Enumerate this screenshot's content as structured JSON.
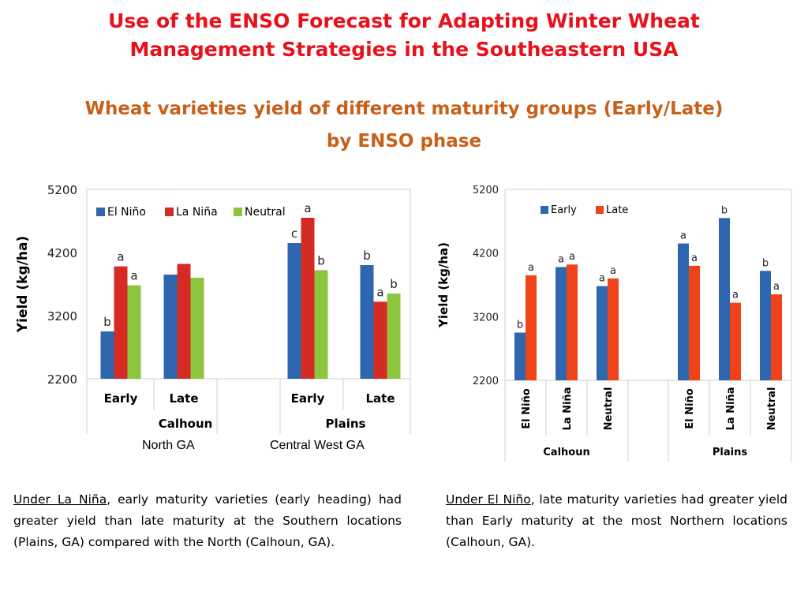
{
  "title": {
    "line1": "Use of the ENSO Forecast for Adapting Winter Wheat",
    "line2": "Management Strategies in the Southeastern USA"
  },
  "subtitle": {
    "line1": "Wheat varieties yield of different maturity groups (Early/Late)",
    "line2": "by ENSO phase"
  },
  "colors": {
    "el_nino": "#2e67b0",
    "la_nina": "#d62b25",
    "neutral": "#8cc63f",
    "early": "#2e67b0",
    "late": "#f0431a",
    "title": "#e8111b",
    "subtitle": "#c8601a"
  },
  "chart_data": [
    {
      "type": "bar",
      "ylabel": "Yield (kg/ha)",
      "ylim": [
        2200,
        5200
      ],
      "yticks": [
        2200,
        3200,
        4200,
        5200
      ],
      "grid": false,
      "legend": "top-left",
      "categories": [
        "Early",
        "Late",
        "Early",
        "Late"
      ],
      "groups": [
        {
          "name": "Calhoun",
          "categories": [
            "Early",
            "Late"
          ]
        },
        {
          "name": "Plains",
          "categories": [
            "Early",
            "Late"
          ]
        }
      ],
      "series": [
        {
          "name": "El Niño",
          "values": [
            2950,
            3850,
            4350,
            4000
          ],
          "labels": [
            "b",
            "",
            "c",
            "b"
          ]
        },
        {
          "name": "La Niña",
          "values": [
            3980,
            4020,
            4750,
            3420
          ],
          "labels": [
            "a",
            "",
            "a",
            "a"
          ]
        },
        {
          "name": "Neutral",
          "values": [
            3680,
            3800,
            3920,
            3550
          ],
          "labels": [
            "a",
            "",
            "b",
            "b"
          ]
        }
      ]
    },
    {
      "type": "bar",
      "ylabel": "Yield (kg/ha)",
      "ylim": [
        2200,
        5200
      ],
      "yticks": [
        2200,
        3200,
        4200,
        5200
      ],
      "grid": false,
      "legend": "top-left",
      "categories": [
        "El Niño",
        "La Niña",
        "Neutral",
        "El Niño",
        "La Niña",
        "Neutral"
      ],
      "groups": [
        {
          "name": "Calhoun",
          "categories": [
            "El Niño",
            "La Niña",
            "Neutral"
          ]
        },
        {
          "name": "Plains",
          "categories": [
            "El Niño",
            "La Niña",
            "Neutral"
          ]
        }
      ],
      "series": [
        {
          "name": "Early",
          "values": [
            2950,
            3980,
            3680,
            4350,
            4750,
            3920
          ],
          "labels": [
            "b",
            "a",
            "a",
            "a",
            "b",
            "b"
          ]
        },
        {
          "name": "Late",
          "values": [
            3850,
            4020,
            3800,
            4000,
            3420,
            3550
          ],
          "labels": [
            "a",
            "a",
            "a",
            "a",
            "a",
            "a"
          ]
        }
      ]
    }
  ],
  "regions": {
    "north": "North GA",
    "central_west": "Central West GA"
  },
  "notes": {
    "left_phase": "Under La Niña",
    "left_text": ", early maturity varieties (early heading) had greater yield than late maturity at the Southern locations (Plains, GA) compared with the North (Calhoun, GA).",
    "right_phase": "Under El Niño",
    "right_text": ", late maturity varieties had greater yield than Early maturity at the most Northern locations (Calhoun, GA)."
  }
}
